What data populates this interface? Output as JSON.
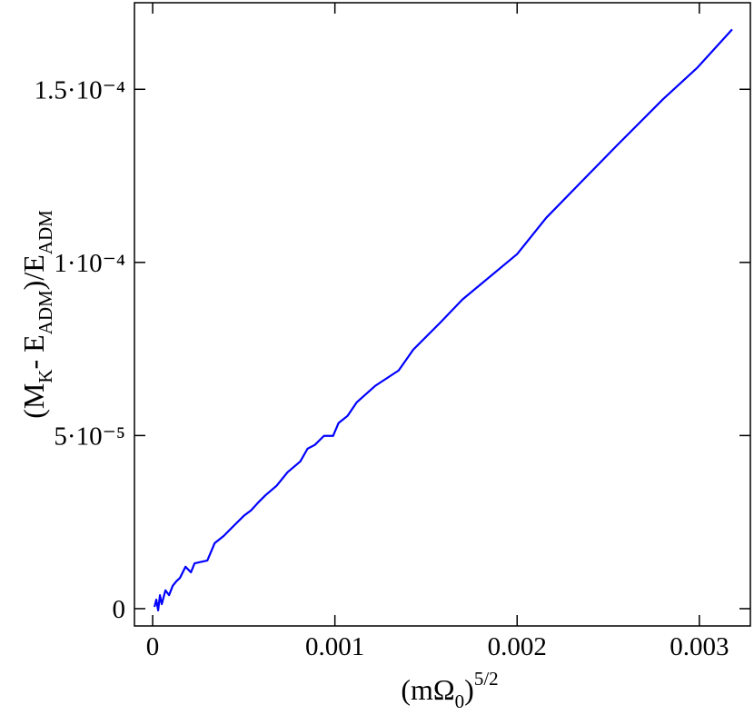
{
  "chart_data": {
    "type": "line",
    "xlabel": [
      "(mΩ",
      "0",
      ")",
      "5/2"
    ],
    "ylabel": [
      "(M",
      "K",
      "- E",
      "ADM",
      ")/E",
      "ADM"
    ],
    "x": [
      1e-05,
      2e-05,
      3e-05,
      4e-05,
      5e-05,
      7e-05,
      9e-05,
      0.00011,
      0.00013,
      0.00015,
      0.00018,
      0.00021,
      0.00023,
      0.0003,
      0.00034,
      0.00039,
      0.00045,
      0.0005,
      0.00054,
      0.00058,
      0.00062,
      0.00068,
      0.00074,
      0.00081,
      0.00085,
      0.00089,
      0.00094,
      0.00099,
      0.00102,
      0.00107,
      0.00112,
      0.00122,
      0.00135,
      0.00143,
      0.00158,
      0.0017,
      0.002,
      0.00216,
      0.00255,
      0.0028,
      0.00299,
      0.00318
    ],
    "series": [
      {
        "color": "#0000ff",
        "values": [
          5e-07,
          2.6e-06,
          -5e-07,
          3.9e-06,
          1.3e-06,
          5.3e-06,
          3.9e-06,
          6.6e-06,
          7.9e-06,
          8.9e-06,
          1.21e-05,
          1.05e-05,
          1.31e-05,
          1.39e-05,
          1.89e-05,
          2.1e-05,
          2.42e-05,
          2.68e-05,
          2.84e-05,
          3.07e-05,
          3.28e-05,
          3.55e-05,
          3.94e-05,
          4.25e-05,
          4.62e-05,
          4.73e-05,
          4.99e-05,
          4.99e-05,
          5.36e-05,
          5.57e-05,
          5.96e-05,
          6.43e-05,
          6.88e-05,
          7.48e-05,
          8.27e-05,
          8.93e-05,
          0.0001024,
          0.0001129,
          0.0001339,
          0.0001471,
          0.0001563,
          0.0001673
        ]
      }
    ],
    "xlim": [
      -0.0001,
      0.00328
    ],
    "ylim": [
      -5e-06,
      0.000175
    ],
    "xticks": [
      0,
      0.001,
      0.002,
      0.003
    ],
    "yticks": [
      0,
      {
        "value": 5e-05,
        "label": "5·10⁻⁵"
      },
      {
        "value": 0.0001,
        "label": "1·10⁻⁴"
      },
      {
        "value": 0.00015,
        "label": "1.5·10⁻⁴"
      }
    ]
  }
}
